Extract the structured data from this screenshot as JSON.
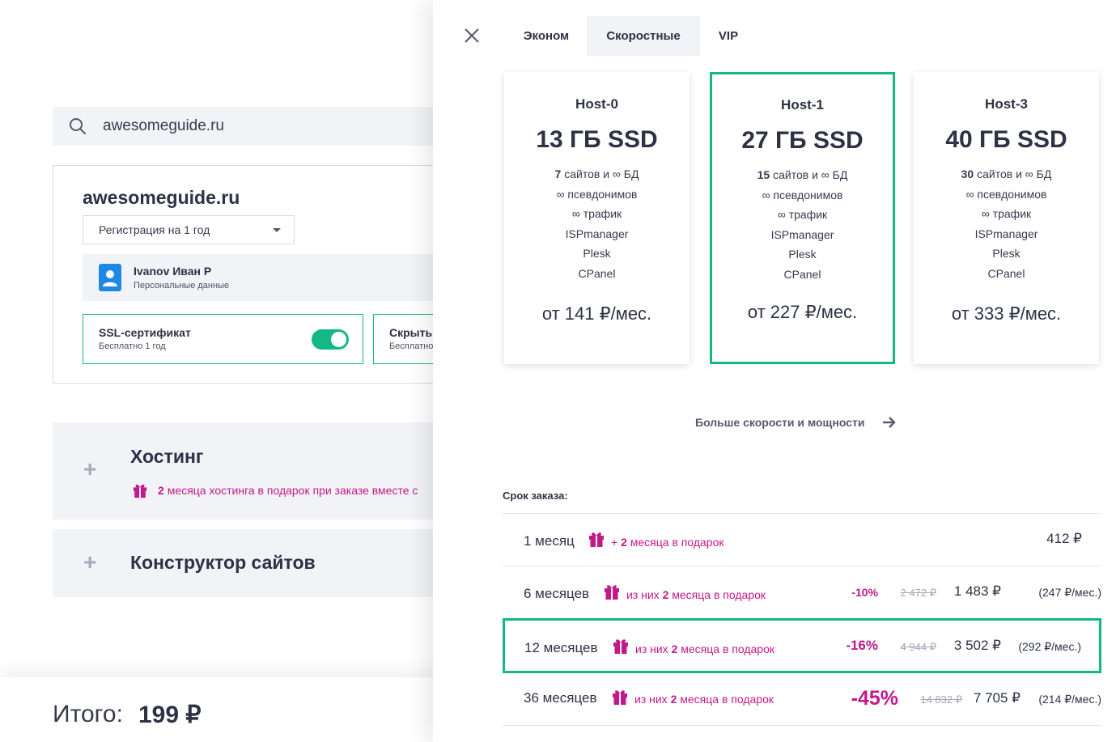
{
  "search": {
    "value": "awesomeguide.ru"
  },
  "domain": {
    "name": "awesomeguide.ru",
    "registration": "Регистрация на 1 год",
    "contact": {
      "name": "Ivanov Иван Р",
      "sub": "Персональные данные"
    },
    "ssl": {
      "title": "SSL-сертификат",
      "sub": "Бесплатно 1 год",
      "enabled": true
    },
    "hide": {
      "title": "Скрыть",
      "sub": "Бесплатно"
    }
  },
  "services": {
    "hosting": {
      "title": "Хостинг",
      "promo_count": "2",
      "promo_text": "месяца хостинга в подарок при заказе вместе с"
    },
    "builder": {
      "title": "Конструктор сайтов"
    }
  },
  "total": {
    "label": "Итого:",
    "value": "199 ₽"
  },
  "drawer": {
    "tabs": [
      {
        "label": "Эконом"
      },
      {
        "label": "Скоростные",
        "active": true
      },
      {
        "label": "VIP"
      }
    ],
    "plans": [
      {
        "name": "Host-0",
        "disk": "13 ГБ SSD",
        "sites_count": "7",
        "sites_text": "сайтов и ∞ БД",
        "feat_aliases": "∞ псевдонимов",
        "feat_traffic": "∞ трафик",
        "feat_panel1": "ISPmanager",
        "feat_panel2": "Plesk",
        "feat_panel3": "CPanel",
        "price": "от 141 ₽/мес."
      },
      {
        "name": "Host-1",
        "disk": "27 ГБ SSD",
        "sites_count": "15",
        "sites_text": "сайтов и ∞ БД",
        "feat_aliases": "∞ псевдонимов",
        "feat_traffic": "∞ трафик",
        "feat_panel1": "ISPmanager",
        "feat_panel2": "Plesk",
        "feat_panel3": "CPanel",
        "price": "от 227 ₽/мес.",
        "selected": true
      },
      {
        "name": "Host-3",
        "disk": "40 ГБ SSD",
        "sites_count": "30",
        "sites_text": "сайтов и ∞ БД",
        "feat_aliases": "∞ псевдонимов",
        "feat_traffic": "∞ трафик",
        "feat_panel1": "ISPmanager",
        "feat_panel2": "Plesk",
        "feat_panel3": "CPanel",
        "price": "от 333 ₽/мес."
      }
    ],
    "more_link": "Больше скорости и мощности",
    "term_label": "Срок заказа:",
    "terms": [
      {
        "name": "1 месяц",
        "promo_pre": "+",
        "promo_count": "2",
        "promo_post": "месяца в подарок",
        "discount": "",
        "old_price": "",
        "price": "412 ₽",
        "per_month": ""
      },
      {
        "name": "6 месяцев",
        "promo_pre": "из них",
        "promo_count": "2",
        "promo_post": "месяца в подарок",
        "discount": "-10%",
        "old_price": "2 472 ₽",
        "price": "1 483 ₽",
        "per_month": "(247 ₽/мес.)"
      },
      {
        "name": "12 месяцев",
        "promo_pre": "из них",
        "promo_count": "2",
        "promo_post": "месяца в подарок",
        "discount": "-16%",
        "old_price": "4 944 ₽",
        "price": "3 502 ₽",
        "per_month": "(292 ₽/мес.)",
        "selected": true
      },
      {
        "name": "36 месяцев",
        "promo_pre": "из них",
        "promo_count": "2",
        "promo_post": "месяца в подарок",
        "discount": "-45%",
        "old_price": "14 832 ₽",
        "price": "7 705 ₽",
        "per_month": "(214 ₽/мес.)"
      }
    ]
  },
  "colors": {
    "accent": "#12b886",
    "promo": "#c2198a",
    "text": "#2d3245",
    "panel": "#f2f3f7"
  }
}
